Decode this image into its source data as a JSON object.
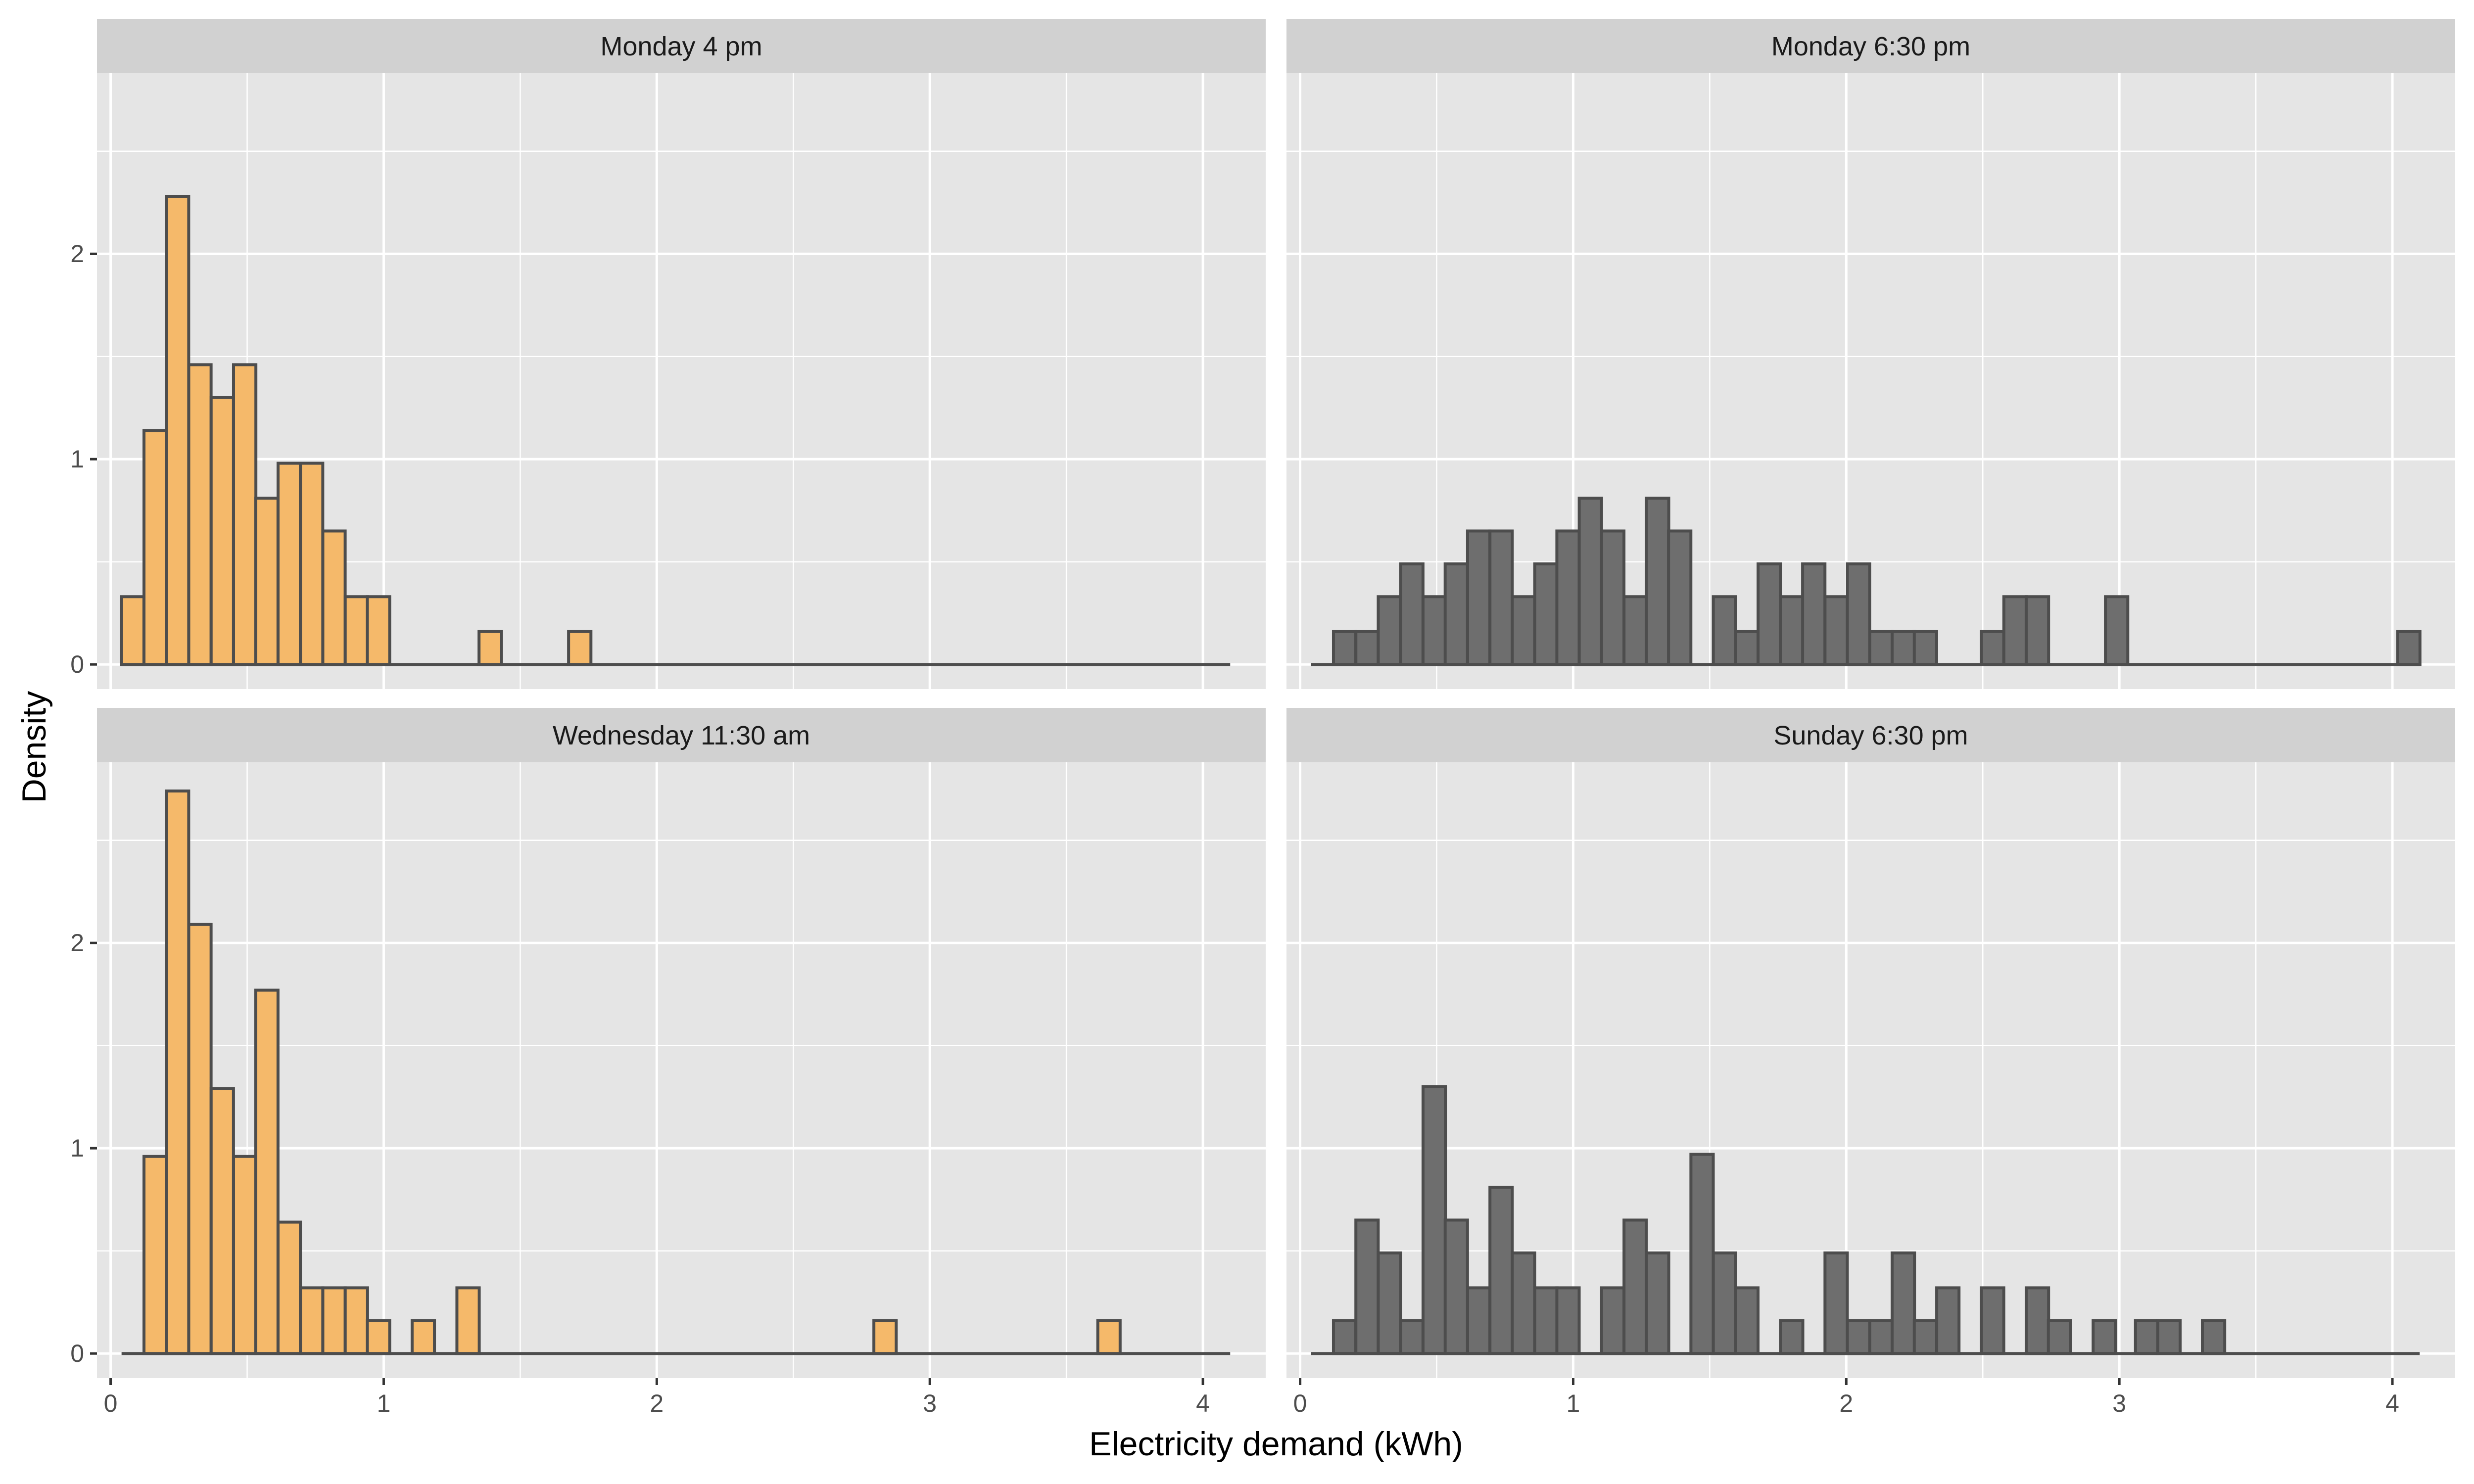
{
  "chart_data": {
    "type": "bar",
    "subtype": "faceted-histogram",
    "xlabel": "Electricity demand (kWh)",
    "ylabel": "Density",
    "x_ticks": [
      0,
      1,
      2,
      3,
      4
    ],
    "y_ticks": [
      0,
      1,
      2
    ],
    "xlim": [
      -0.05,
      4.23
    ],
    "ylim": [
      -0.12,
      2.88
    ],
    "bin_width": 0.0818,
    "baseline_range": [
      0.04,
      4.1
    ],
    "grid": true,
    "legend": "none",
    "colors": {
      "panel_bg": "#e5e5e5",
      "grid": "#ffffff",
      "strip_bg": "#d1d1d1",
      "bar_outline": "#4d4d4d",
      "orange_fill": "#f5b96a",
      "grey_fill": "#6e6e6e"
    },
    "panels": [
      {
        "title": "Monday 4 pm",
        "fill": "#f5b96a",
        "bins": [
          [
            0.081,
            0.33
          ],
          [
            0.163,
            1.14
          ],
          [
            0.245,
            2.28
          ],
          [
            0.327,
            1.46
          ],
          [
            0.409,
            1.3
          ],
          [
            0.491,
            1.46
          ],
          [
            0.572,
            0.81
          ],
          [
            0.654,
            0.98
          ],
          [
            0.736,
            0.98
          ],
          [
            0.818,
            0.65
          ],
          [
            0.9,
            0.33
          ],
          [
            0.981,
            0.33
          ],
          [
            1.39,
            0.16
          ],
          [
            1.718,
            0.16
          ]
        ]
      },
      {
        "title": "Monday 6:30 pm",
        "fill": "#6e6e6e",
        "bins": [
          [
            0.163,
            0.16
          ],
          [
            0.245,
            0.16
          ],
          [
            0.327,
            0.33
          ],
          [
            0.409,
            0.49
          ],
          [
            0.491,
            0.33
          ],
          [
            0.572,
            0.49
          ],
          [
            0.654,
            0.65
          ],
          [
            0.736,
            0.65
          ],
          [
            0.818,
            0.33
          ],
          [
            0.9,
            0.49
          ],
          [
            0.981,
            0.65
          ],
          [
            1.063,
            0.81
          ],
          [
            1.145,
            0.65
          ],
          [
            1.227,
            0.33
          ],
          [
            1.309,
            0.81
          ],
          [
            1.39,
            0.65
          ],
          [
            1.554,
            0.33
          ],
          [
            1.636,
            0.16
          ],
          [
            1.718,
            0.49
          ],
          [
            1.8,
            0.33
          ],
          [
            1.881,
            0.49
          ],
          [
            1.963,
            0.33
          ],
          [
            2.045,
            0.49
          ],
          [
            2.127,
            0.16
          ],
          [
            2.209,
            0.16
          ],
          [
            2.29,
            0.16
          ],
          [
            2.536,
            0.16
          ],
          [
            2.618,
            0.33
          ],
          [
            2.7,
            0.33
          ],
          [
            2.99,
            0.33
          ],
          [
            4.06,
            0.16
          ]
        ]
      },
      {
        "title": "Wednesday 11:30 am",
        "fill": "#f5b96a",
        "bins": [
          [
            0.163,
            0.96
          ],
          [
            0.245,
            2.74
          ],
          [
            0.327,
            2.09
          ],
          [
            0.409,
            1.29
          ],
          [
            0.491,
            0.96
          ],
          [
            0.572,
            1.77
          ],
          [
            0.654,
            0.64
          ],
          [
            0.736,
            0.32
          ],
          [
            0.818,
            0.32
          ],
          [
            0.9,
            0.32
          ],
          [
            0.981,
            0.16
          ],
          [
            1.145,
            0.16
          ],
          [
            1.309,
            0.32
          ],
          [
            2.836,
            0.16
          ],
          [
            3.656,
            0.16
          ]
        ]
      },
      {
        "title": "Sunday 6:30 pm",
        "fill": "#6e6e6e",
        "bins": [
          [
            0.163,
            0.16
          ],
          [
            0.245,
            0.65
          ],
          [
            0.327,
            0.49
          ],
          [
            0.409,
            0.16
          ],
          [
            0.491,
            1.3
          ],
          [
            0.572,
            0.65
          ],
          [
            0.654,
            0.32
          ],
          [
            0.736,
            0.81
          ],
          [
            0.818,
            0.49
          ],
          [
            0.9,
            0.32
          ],
          [
            0.981,
            0.32
          ],
          [
            1.145,
            0.32
          ],
          [
            1.227,
            0.65
          ],
          [
            1.309,
            0.49
          ],
          [
            1.472,
            0.97
          ],
          [
            1.554,
            0.49
          ],
          [
            1.636,
            0.32
          ],
          [
            1.8,
            0.16
          ],
          [
            1.963,
            0.49
          ],
          [
            2.045,
            0.16
          ],
          [
            2.127,
            0.16
          ],
          [
            2.209,
            0.49
          ],
          [
            2.29,
            0.16
          ],
          [
            2.372,
            0.32
          ],
          [
            2.536,
            0.32
          ],
          [
            2.7,
            0.32
          ],
          [
            2.781,
            0.16
          ],
          [
            2.945,
            0.16
          ],
          [
            3.1,
            0.16
          ],
          [
            3.182,
            0.16
          ],
          [
            3.345,
            0.16
          ]
        ]
      }
    ]
  }
}
